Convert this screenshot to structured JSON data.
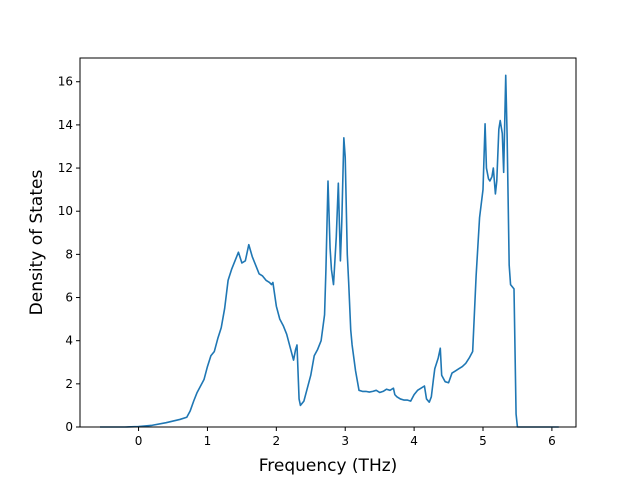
{
  "chart_data": {
    "type": "line",
    "title": "",
    "xlabel": "Frequency (THz)",
    "ylabel": "Density of States",
    "xlim": [
      -0.85,
      6.35
    ],
    "ylim": [
      0,
      17.1
    ],
    "xticks": [
      0,
      1,
      2,
      3,
      4,
      5,
      6
    ],
    "xtick_labels": [
      "0",
      "1",
      "2",
      "3",
      "4",
      "5",
      "6"
    ],
    "yticks": [
      0,
      2,
      4,
      6,
      8,
      10,
      12,
      14,
      16
    ],
    "ytick_labels": [
      "0",
      "2",
      "4",
      "6",
      "8",
      "10",
      "12",
      "14",
      "16"
    ],
    "grid": false,
    "legend": "none",
    "line_color": "#1f77b4",
    "series": [
      {
        "x": [
          -0.56,
          -0.2,
          0.0,
          0.2,
          0.4,
          0.6,
          0.7,
          0.75,
          0.8,
          0.85,
          0.9,
          0.95,
          1.0,
          1.05,
          1.1,
          1.15,
          1.2,
          1.25,
          1.3,
          1.35,
          1.4,
          1.45,
          1.5,
          1.55,
          1.6,
          1.65,
          1.7,
          1.75,
          1.8,
          1.85,
          1.9,
          1.93,
          1.95,
          2.0,
          2.05,
          2.1,
          2.15,
          2.2,
          2.25,
          2.28,
          2.3,
          2.33,
          2.35,
          2.4,
          2.45,
          2.5,
          2.55,
          2.6,
          2.65,
          2.7,
          2.72,
          2.75,
          2.78,
          2.8,
          2.83,
          2.87,
          2.9,
          2.93,
          2.95,
          2.98,
          3.0,
          3.03,
          3.05,
          3.08,
          3.1,
          3.15,
          3.2,
          3.25,
          3.3,
          3.35,
          3.4,
          3.45,
          3.5,
          3.55,
          3.6,
          3.65,
          3.7,
          3.72,
          3.75,
          3.8,
          3.85,
          3.9,
          3.95,
          4.0,
          4.05,
          4.1,
          4.15,
          4.18,
          4.22,
          4.25,
          4.28,
          4.3,
          4.35,
          4.38,
          4.4,
          4.45,
          4.5,
          4.55,
          4.6,
          4.65,
          4.7,
          4.75,
          4.8,
          4.85,
          4.9,
          4.95,
          5.0,
          5.03,
          5.05,
          5.08,
          5.1,
          5.13,
          5.15,
          5.18,
          5.2,
          5.23,
          5.25,
          5.28,
          5.3,
          5.33,
          5.35,
          5.38,
          5.4,
          5.45,
          5.48,
          5.5,
          5.55,
          5.57,
          5.6,
          6.1
        ],
        "y": [
          0.0,
          0.0,
          0.02,
          0.08,
          0.2,
          0.35,
          0.45,
          0.75,
          1.2,
          1.6,
          1.9,
          2.2,
          2.8,
          3.3,
          3.5,
          4.1,
          4.6,
          5.5,
          6.8,
          7.3,
          7.7,
          8.1,
          7.6,
          7.7,
          8.45,
          7.9,
          7.5,
          7.1,
          7.0,
          6.8,
          6.7,
          6.6,
          6.7,
          5.6,
          5.0,
          4.7,
          4.3,
          3.7,
          3.1,
          3.6,
          3.8,
          1.3,
          1.0,
          1.2,
          1.8,
          2.4,
          3.3,
          3.6,
          4.0,
          5.2,
          7.3,
          11.4,
          8.3,
          7.3,
          6.6,
          8.8,
          11.3,
          7.7,
          9.5,
          13.4,
          12.5,
          8.0,
          6.7,
          4.5,
          3.8,
          2.6,
          1.7,
          1.65,
          1.65,
          1.62,
          1.65,
          1.7,
          1.6,
          1.65,
          1.75,
          1.7,
          1.8,
          1.5,
          1.4,
          1.3,
          1.25,
          1.25,
          1.2,
          1.5,
          1.7,
          1.8,
          1.9,
          1.3,
          1.15,
          1.4,
          2.2,
          2.7,
          3.2,
          3.65,
          2.4,
          2.1,
          2.05,
          2.5,
          2.6,
          2.7,
          2.8,
          2.95,
          3.2,
          3.5,
          7.0,
          9.7,
          11.0,
          14.05,
          12.0,
          11.5,
          11.4,
          11.6,
          12.0,
          10.8,
          11.4,
          13.8,
          14.2,
          13.6,
          11.8,
          16.3,
          13.5,
          7.5,
          6.6,
          6.4,
          0.6,
          0.0,
          0.0,
          0.0,
          0.0,
          0.0
        ]
      }
    ]
  }
}
